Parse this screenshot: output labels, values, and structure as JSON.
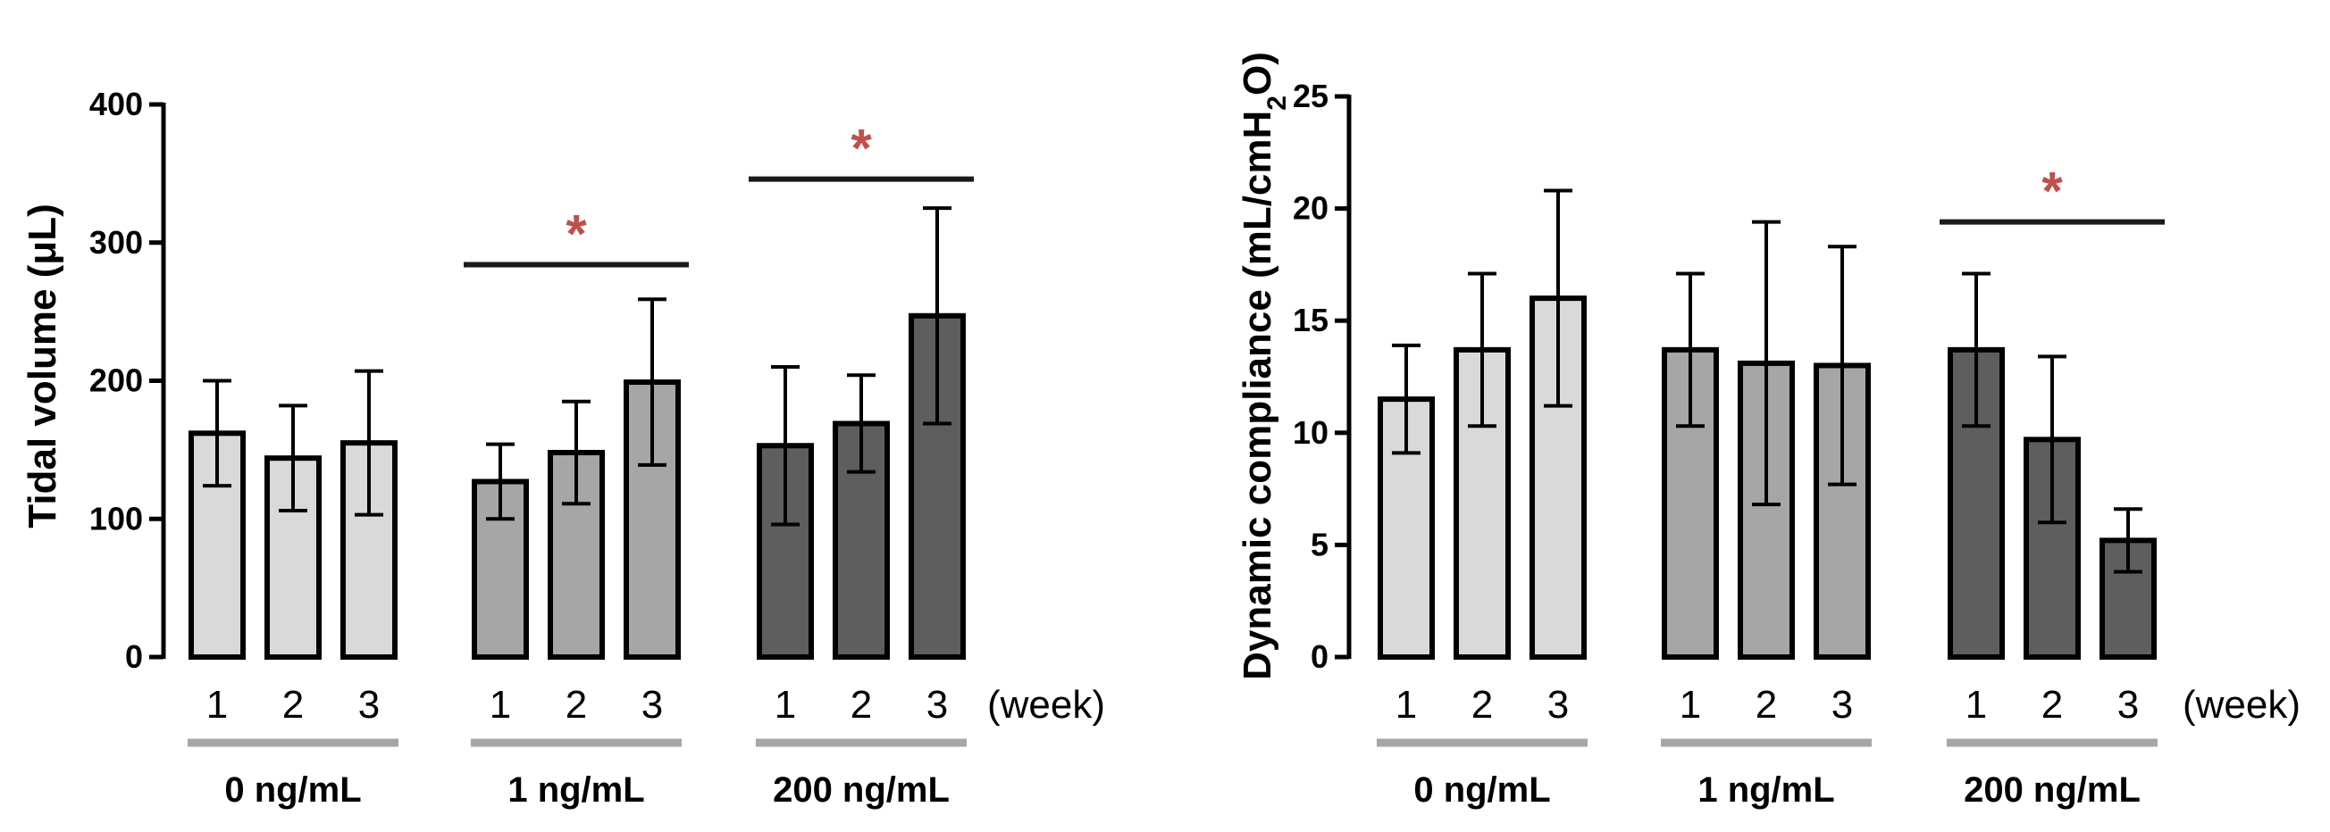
{
  "colors": {
    "group_0": "#d9d9d9",
    "group_1": "#a6a6a8",
    "group_2": "#5e5e5f",
    "underline": "#a6a6a6",
    "significance": "#c0504d",
    "axis": "#000000"
  },
  "chart_data": [
    {
      "type": "bar",
      "ylabel": "Tidal volume (μL)",
      "ylim": [
        0,
        400
      ],
      "yticks": [
        0,
        100,
        200,
        300,
        400
      ],
      "x_unit_label": "(week)",
      "groups": [
        {
          "name": "0 ng/mL",
          "categories": [
            "1",
            "2",
            "3"
          ],
          "values": [
            162,
            144,
            155
          ],
          "errors": [
            38,
            38,
            52
          ]
        },
        {
          "name": "1 ng/mL",
          "categories": [
            "1",
            "2",
            "3"
          ],
          "values": [
            127,
            148,
            199
          ],
          "errors": [
            27,
            37,
            60
          ]
        },
        {
          "name": "200 ng/mL",
          "categories": [
            "1",
            "2",
            "3"
          ],
          "values": [
            153,
            169,
            247
          ],
          "errors": [
            57,
            35,
            78
          ]
        }
      ],
      "significance": [
        {
          "group": 1,
          "from": 0,
          "to": 2,
          "label": "*",
          "level": 284
        },
        {
          "group": 2,
          "from": 0,
          "to": 2,
          "label": "*",
          "level": 346
        }
      ]
    },
    {
      "type": "bar",
      "ylabel_main": "Dynamic compliance (mL/cmH",
      "ylabel_sub": "2",
      "ylabel_end": "O)",
      "ylim": [
        0,
        25
      ],
      "yticks": [
        0,
        5,
        10,
        15,
        20,
        25
      ],
      "x_unit_label": "(week)",
      "groups": [
        {
          "name": "0 ng/mL",
          "categories": [
            "1",
            "2",
            "3"
          ],
          "values": [
            11.5,
            13.7,
            16.0
          ],
          "errors": [
            2.4,
            3.4,
            4.8
          ]
        },
        {
          "name": "1 ng/mL",
          "categories": [
            "1",
            "2",
            "3"
          ],
          "values": [
            13.7,
            13.1,
            13.0
          ],
          "errors": [
            3.4,
            6.3,
            5.3
          ]
        },
        {
          "name": "200 ng/mL",
          "categories": [
            "1",
            "2",
            "3"
          ],
          "values": [
            13.7,
            9.7,
            5.2
          ],
          "errors": [
            3.4,
            3.7,
            1.4
          ]
        }
      ],
      "significance": [
        {
          "group": 2,
          "from": 0,
          "to": 2,
          "label": "*",
          "level": 19.4
        }
      ]
    }
  ]
}
